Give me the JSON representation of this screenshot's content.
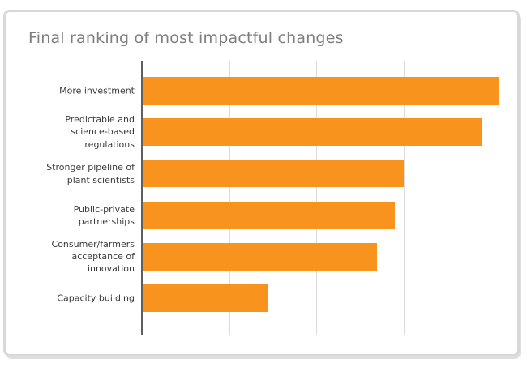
{
  "chart_data": {
    "type": "bar",
    "orientation": "horizontal",
    "title": "Final ranking of most impactful changes",
    "categories": [
      "More investment",
      "Predictable and science-based regulations",
      "Stronger pipeline of plant scientists",
      "Public-private partnerships",
      "Consumer/farmers acceptance of innovation",
      "Capacity building"
    ],
    "values": [
      4.1,
      3.9,
      3.0,
      2.9,
      2.7,
      1.45
    ],
    "xlabel": "",
    "ylabel": "",
    "xlim": [
      0,
      4.17
    ],
    "x_gridlines": [
      1,
      2,
      3,
      4
    ],
    "x_tick_labels_visible": false,
    "grid": "vertical-only",
    "legend_position": "none",
    "bar_color": "#f8941d",
    "axis_line_color": "#5f5f5f",
    "gridline_color": "#dcdcdc",
    "label_color": "#3a3a3a",
    "title_color": "#7e7e7e"
  }
}
